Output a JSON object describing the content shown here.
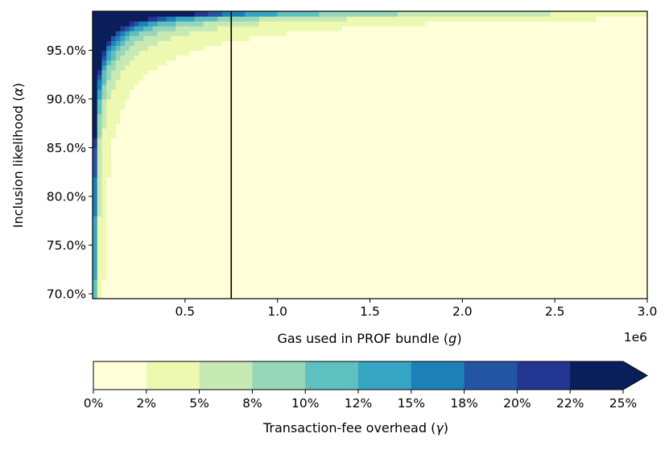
{
  "chart_data": {
    "type": "heatmap",
    "xlabel": "Gas used in PROF bundle (g)",
    "ylabel": "Inclusion likelihood (α)",
    "x_range": [
      0,
      3000000
    ],
    "y_range": [
      0.695,
      0.99
    ],
    "x_ticks": [
      {
        "value": 500000,
        "label": "0.5"
      },
      {
        "value": 1000000,
        "label": "1.0"
      },
      {
        "value": 1500000,
        "label": "1.5"
      },
      {
        "value": 2000000,
        "label": "2.0"
      },
      {
        "value": 2500000,
        "label": "2.5"
      },
      {
        "value": 3000000,
        "label": "3.0"
      }
    ],
    "x_offset_label": "1e6",
    "y_ticks": [
      {
        "value": 0.7,
        "label": "70.0%"
      },
      {
        "value": 0.75,
        "label": "75.0%"
      },
      {
        "value": 0.8,
        "label": "80.0%"
      },
      {
        "value": 0.85,
        "label": "85.0%"
      },
      {
        "value": 0.9,
        "label": "90.0%"
      },
      {
        "value": 0.95,
        "label": "95.0%"
      }
    ],
    "reference_line_x": 750000,
    "colormap": "YlGnBu",
    "colorbar": {
      "label": "Transaction-fee overhead (γ)",
      "levels": [
        0,
        2.5,
        5,
        7.5,
        10,
        12.5,
        15,
        17.5,
        20,
        22.5,
        25
      ],
      "tick_labels": [
        "0%",
        "2%",
        "5%",
        "8%",
        "10%",
        "12%",
        "15%",
        "18%",
        "20%",
        "22%",
        "25%"
      ],
      "colors": [
        "#ffffd9",
        "#edf8b1",
        "#c7e9b4",
        "#97d6b9",
        "#5fc0c0",
        "#36a5c3",
        "#1d81b8",
        "#2355a4",
        "#233691",
        "#0b1e5c"
      ],
      "extend": "max"
    },
    "surface": {
      "rule": "overhead_percent = k(alpha) / gas_million",
      "k_by_alpha": [
        {
          "alpha": 0.7,
          "k": 0.15
        },
        {
          "alpha": 0.8,
          "k": 0.2
        },
        {
          "alpha": 0.85,
          "k": 0.25
        },
        {
          "alpha": 0.9,
          "k": 0.45
        },
        {
          "alpha": 0.93,
          "k": 0.8
        },
        {
          "alpha": 0.95,
          "k": 1.4
        },
        {
          "alpha": 0.96,
          "k": 1.9
        },
        {
          "alpha": 0.97,
          "k": 2.9
        },
        {
          "alpha": 0.975,
          "k": 3.9
        },
        {
          "alpha": 0.98,
          "k": 5.2
        },
        {
          "alpha": 0.985,
          "k": 9
        },
        {
          "alpha": 0.99,
          "k": 17
        }
      ]
    }
  }
}
